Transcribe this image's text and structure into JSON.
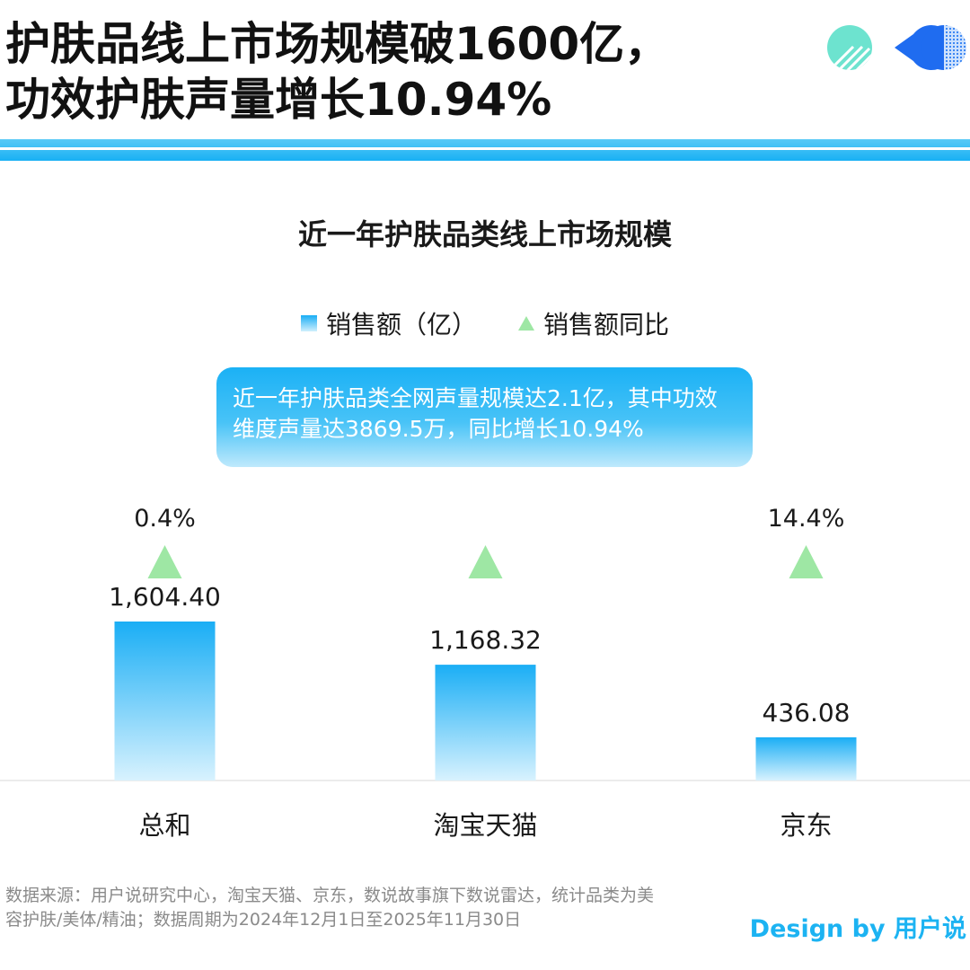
{
  "headline": {
    "line1": "护肤品线上市场规模破1600亿，",
    "line2": "功效护肤声量增长10.94%"
  },
  "chart_data": {
    "type": "bar",
    "title": "近一年护肤品类线上市场规模",
    "categories": [
      "总和",
      "淘宝天猫",
      "京东"
    ],
    "series": [
      {
        "name": "销售额（亿）",
        "values": [
          1604.4,
          1168.32,
          436.08
        ],
        "labels": [
          "1,604.40",
          "1,168.32",
          "436.08"
        ]
      },
      {
        "name": "销售额同比",
        "values": [
          0.4,
          null,
          14.4
        ],
        "labels": [
          "0.4%",
          "",
          "14.4%"
        ]
      }
    ],
    "legend_position": "top-center",
    "grid": false,
    "colors": {
      "bar_top": "#1aaef5",
      "bar_bottom": "#d8f2fe",
      "marker": "#9ee7a4"
    }
  },
  "callout": {
    "text": "近一年护肤品类全网声量规模达2.1亿，其中功效维度声量达3869.5万，同比增长10.94%"
  },
  "footnote": "数据来源：用户说研究中心，淘宝天猫、京东，数说故事旗下数说雷达，统计品类为美容护肤/美体/精油；数据周期为2024年12月1日至2025年11月30日",
  "credit": "Design by 用户说",
  "colors": {
    "accent": "#1cb3f2",
    "logo_teal": "#6de3cf",
    "logo_blue": "#1f6cf0"
  }
}
